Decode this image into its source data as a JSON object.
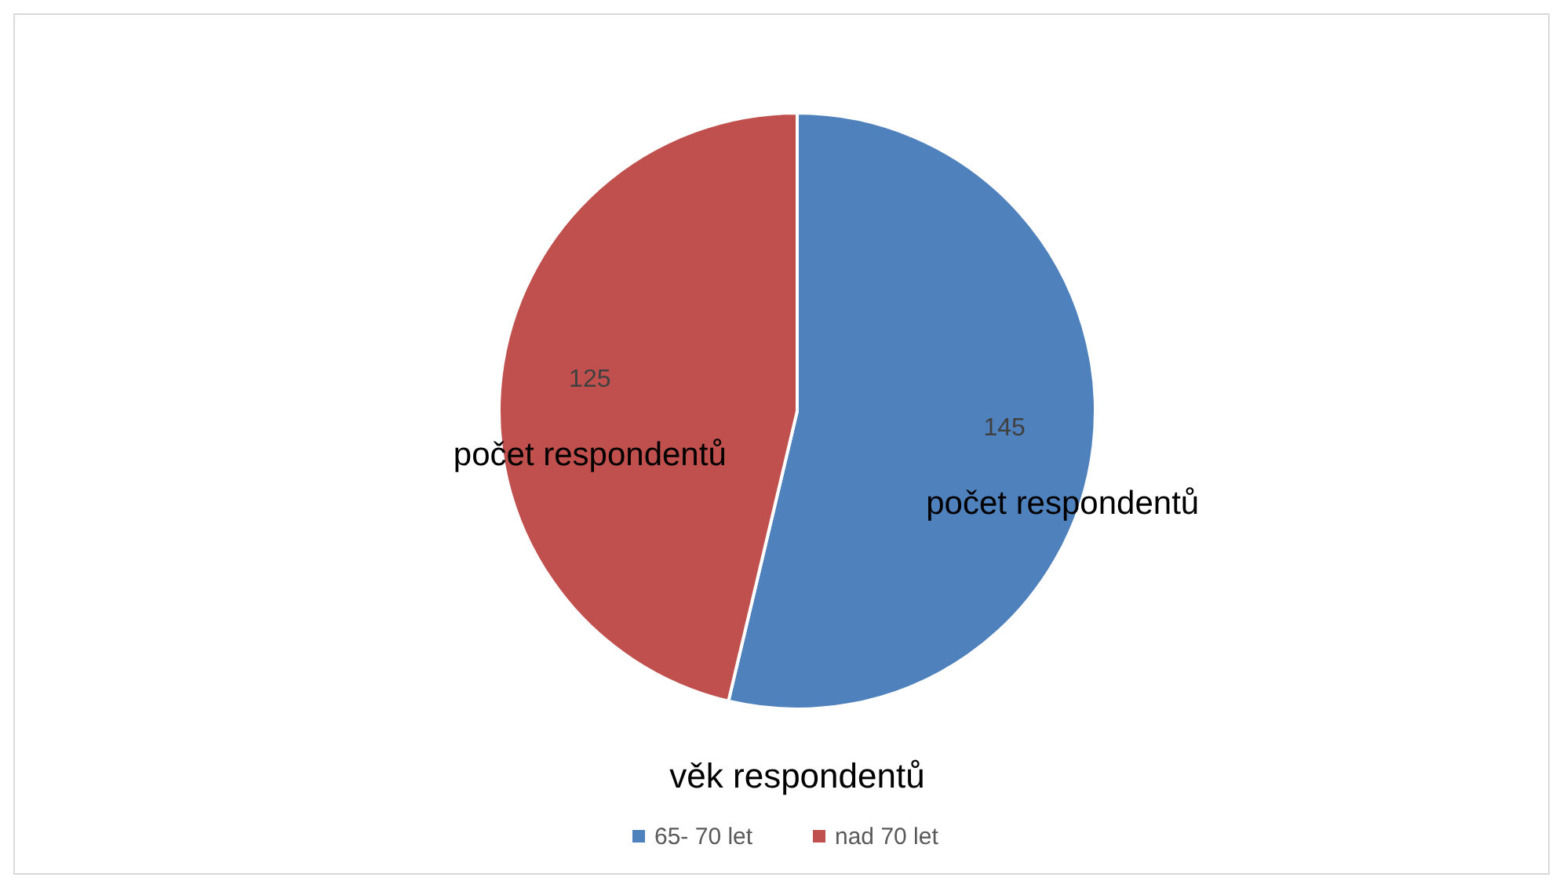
{
  "chart_data": {
    "type": "pie",
    "title": "věk respondentů",
    "categories": [
      "65- 70 let",
      "nad 70 let"
    ],
    "values": [
      145,
      125
    ],
    "colors": [
      "#4f81bd",
      "#c0504d"
    ],
    "data_labels": true,
    "annotations": [
      "počet respondentů",
      "počet respondentů"
    ],
    "legend": "bottom"
  }
}
